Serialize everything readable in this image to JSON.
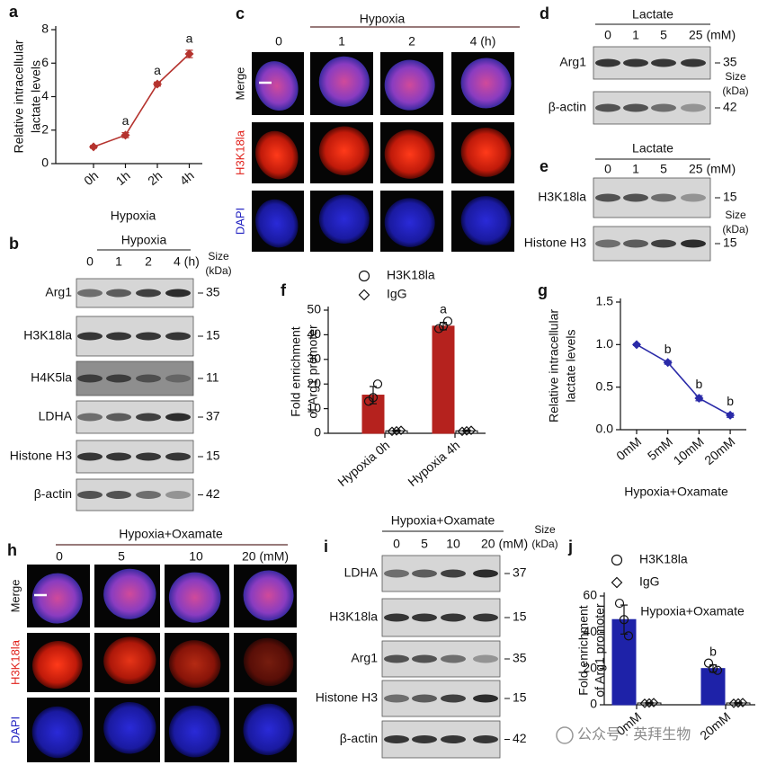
{
  "chart_data": [
    {
      "label": "a",
      "type": "line",
      "categories": [
        "0h",
        "1h",
        "2h",
        "4h"
      ],
      "values": [
        1.0,
        1.7,
        4.75,
        6.55
      ],
      "errors": [
        0.08,
        0.15,
        0.12,
        0.22
      ],
      "color": "#b5332e",
      "annotations": [
        null,
        "a",
        "a",
        "a"
      ],
      "ylim": [
        0,
        8
      ],
      "yticks": [
        0,
        2,
        4,
        6,
        8
      ],
      "y_label": [
        "Relative intracellular",
        "lactate levels"
      ],
      "x_label": "Hypoxia"
    },
    {
      "label": "f",
      "type": "bar",
      "categories": [
        "Hypoxia 0h",
        "Hypoxia 4h"
      ],
      "series": [
        {
          "name": "H3K18la",
          "color": "#b5221e",
          "marker": "circle",
          "values": [
            15.5,
            43.5
          ],
          "errors": [
            3.5,
            1.5
          ],
          "points": [
            [
              13,
              14.5,
              20
            ],
            [
              42.5,
              43.5,
              45.5
            ]
          ],
          "annotations": [
            null,
            "a"
          ]
        },
        {
          "name": "IgG",
          "color": "#ffffff",
          "marker": "diamond",
          "values": [
            1,
            1
          ],
          "errors": [
            0.3,
            0.3
          ],
          "points": [
            [
              0.8,
              1,
              1.2
            ],
            [
              0.8,
              1,
              1.2
            ]
          ]
        }
      ],
      "ylim": [
        0,
        50
      ],
      "yticks": [
        0,
        10,
        20,
        30,
        40,
        50
      ],
      "y_label": [
        "Fold enrichment",
        "of Arg1 promoter"
      ]
    },
    {
      "label": "g",
      "type": "line",
      "categories": [
        "0mM",
        "5mM",
        "10mM",
        "20mM"
      ],
      "values": [
        1.0,
        0.79,
        0.37,
        0.17
      ],
      "errors": [
        0.01,
        0.02,
        0.03,
        0.025
      ],
      "color": "#2a2aa8",
      "annotations": [
        null,
        "b",
        "b",
        "b"
      ],
      "ylim": [
        0,
        1.5
      ],
      "yticks": [
        {
          "value": 0,
          "label": "0.0"
        },
        0.5,
        {
          "value": 1,
          "label": "1.0"
        },
        1.5
      ],
      "y_label": [
        "Relative intracellular",
        "lactate  levels"
      ],
      "x_label": "Hypoxia+Oxamate"
    },
    {
      "label": "j",
      "type": "bar",
      "categories": [
        "0mM",
        "20mM"
      ],
      "series": [
        {
          "name": "H3K18la",
          "color": "#1e22a8",
          "marker": "circle",
          "values": [
            47,
            20
          ],
          "errors": [
            8,
            2
          ],
          "points": [
            [
              56,
              47,
              38
            ],
            [
              23,
              20,
              19
            ]
          ],
          "annotations": [
            null,
            "b"
          ]
        },
        {
          "name": "IgG",
          "color": "#ffffff",
          "marker": "diamond",
          "values": [
            1,
            1
          ],
          "errors": [
            0.3,
            0.3
          ],
          "points": [
            [
              0.8,
              1,
              1.2
            ],
            [
              0.8,
              1,
              1.2
            ]
          ]
        }
      ],
      "ylim": [
        0,
        60
      ],
      "yticks": [
        0,
        20,
        40,
        60
      ],
      "inner_label": "Hypoxia+Oxamate",
      "y_label": [
        "Fold enrichment",
        "of Arg1 promoter"
      ]
    }
  ],
  "blots": [
    {
      "label": "b",
      "header": "Hypoxia",
      "lanes": [
        "0",
        "1",
        "2",
        "4 (h)"
      ],
      "size_label": [
        "Size",
        "(kDa)"
      ],
      "rows": [
        {
          "name": "Arg1",
          "size": "35"
        },
        {
          "name": "H3K18la",
          "size": "15"
        },
        {
          "name": "H4K5la",
          "size": "11"
        },
        {
          "name": "LDHA",
          "size": "37"
        },
        {
          "name": "Histone H3",
          "size": "15"
        },
        {
          "name": "β-actin",
          "size": "42"
        }
      ]
    },
    {
      "label": "d",
      "header": "Lactate",
      "lanes": [
        "0",
        "1",
        "5",
        "25 (mM)"
      ],
      "size_label": [
        "Size",
        "(kDa)"
      ],
      "rows": [
        {
          "name": "Arg1",
          "size": "35"
        },
        {
          "name": "β-actin",
          "size": "42"
        }
      ]
    },
    {
      "label": "e",
      "header": "Lactate",
      "lanes": [
        "0",
        "1",
        "5",
        "25 (mM)"
      ],
      "size_label": [
        "Size",
        "(kDa)"
      ],
      "rows": [
        {
          "name": "H3K18la",
          "size": "15"
        },
        {
          "name": "Histone H3",
          "size": "15"
        }
      ]
    },
    {
      "label": "i",
      "header": "Hypoxia+Oxamate",
      "lanes": [
        "0",
        "5",
        "10",
        "20 (mM)"
      ],
      "size_label": [
        "Size",
        "(kDa)"
      ],
      "rows": [
        {
          "name": "LDHA",
          "size": "37"
        },
        {
          "name": "H3K18la",
          "size": "15"
        },
        {
          "name": "Arg1",
          "size": "35"
        },
        {
          "name": "Histone H3",
          "size": "15"
        },
        {
          "name": "β-actin",
          "size": "42"
        }
      ]
    }
  ],
  "micrographs": [
    {
      "label": "c",
      "header": "Hypoxia",
      "columns": [
        "0",
        "1",
        "2",
        "4 (h)"
      ],
      "rows": [
        "Merge",
        "H3K18la",
        "DAPI"
      ]
    },
    {
      "label": "h",
      "header": "Hypoxia+Oxamate",
      "columns": [
        "0",
        "5",
        "10",
        "20 (mM)"
      ],
      "rows": [
        "Merge",
        "H3K18la",
        "DAPI"
      ]
    }
  ],
  "watermark": "公众号 · 英拜生物"
}
